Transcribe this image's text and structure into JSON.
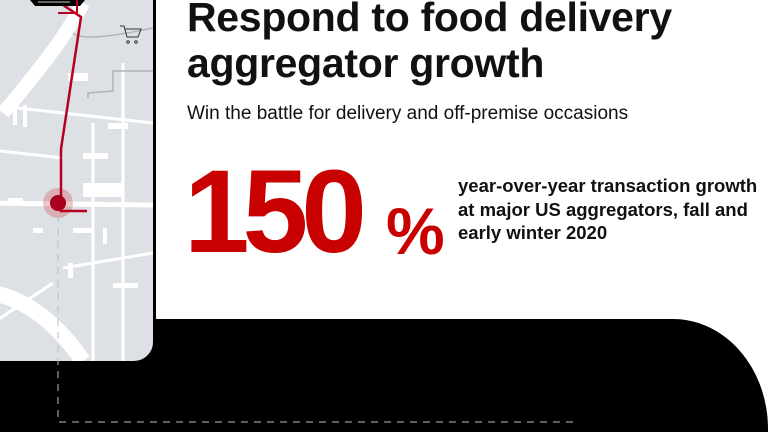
{
  "header": {
    "title_line1": "Respond to food delivery",
    "title_line2": "aggregator growth",
    "subtitle": "Win the battle for delivery and off-premise occasions"
  },
  "stat": {
    "value": "150",
    "unit": "%",
    "description": "year-over-year transaction growth at major US aggregators, fall and early winter 2020"
  },
  "phone": {
    "icons": [
      "shopping-cart-icon",
      "location-pin-icon"
    ]
  },
  "colors": {
    "accent": "#c80000",
    "map": "#dde1e6",
    "route": "#b5001f",
    "band": "#000000"
  }
}
